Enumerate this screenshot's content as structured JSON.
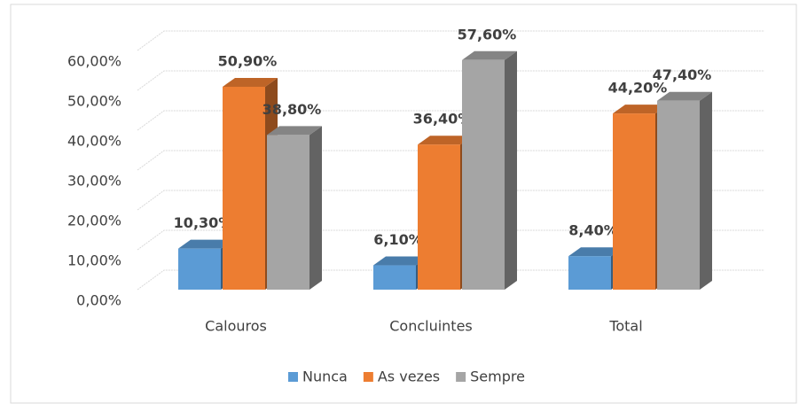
{
  "chart_data": {
    "type": "bar3d",
    "categories": [
      "Calouros",
      "Concluintes",
      "Total"
    ],
    "series": [
      {
        "name": "Nunca",
        "color": "#5b9bd5",
        "values": [
          10.3,
          6.1,
          8.4
        ],
        "value_labels": [
          "10,30%",
          "6,10%",
          "8,40%"
        ]
      },
      {
        "name": "As vezes",
        "color": "#ed7d31",
        "values": [
          50.9,
          36.4,
          44.2
        ],
        "value_labels": [
          "50,90%",
          "36,40%",
          "44,20%"
        ]
      },
      {
        "name": "Sempre",
        "color": "#a5a5a5",
        "values": [
          38.8,
          57.6,
          47.4
        ],
        "value_labels": [
          "38,80%",
          "57,60%",
          "47,40%"
        ]
      }
    ],
    "ylim": [
      0,
      60
    ],
    "yticks": [
      {
        "value": 0,
        "label": "0,00%"
      },
      {
        "value": 10,
        "label": "10,00%"
      },
      {
        "value": 20,
        "label": "20,00%"
      },
      {
        "value": 30,
        "label": "30,00%"
      },
      {
        "value": 40,
        "label": "40,00%"
      },
      {
        "value": 50,
        "label": "50,00%"
      },
      {
        "value": 60,
        "label": "60,00%"
      }
    ],
    "grid": true,
    "legend": "bottom"
  }
}
